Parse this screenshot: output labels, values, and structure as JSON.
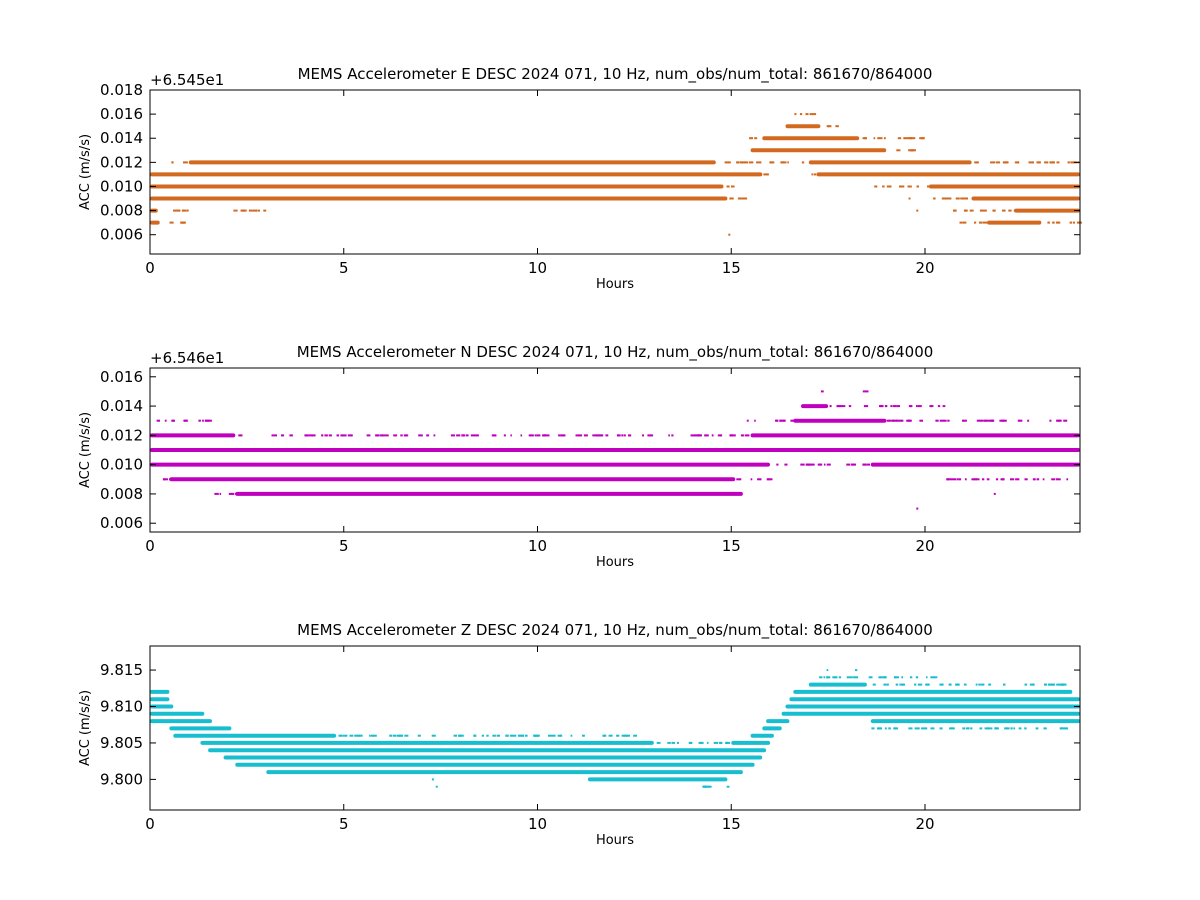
{
  "figure": {
    "background": "#ffffff"
  },
  "chart_data": [
    {
      "type": "scatter",
      "title": "MEMS Accelerometer E DESC 2024 071, 10 Hz, num_obs/num_total: 861670/864000",
      "xlabel": "Hours",
      "ylabel": "ACC (m/s/s)",
      "offset_text": "+6.545e1",
      "xlim": [
        0,
        24
      ],
      "ylim": [
        0.0044,
        0.018
      ],
      "xticks": [
        0,
        5,
        10,
        15,
        20
      ],
      "xtick_labels": [
        "0",
        "5",
        "10",
        "15",
        "20"
      ],
      "yticks": [
        0.006,
        0.008,
        0.01,
        0.012,
        0.014,
        0.016,
        0.018
      ],
      "ytick_labels": [
        "0.006",
        "0.008",
        "0.010",
        "0.012",
        "0.014",
        "0.016",
        "0.018"
      ],
      "grid": false,
      "color": "#d2691e",
      "bands": [
        {
          "y": 0.007,
          "dense": [
            [
              0,
              0.25
            ],
            [
              21.6,
              23.0
            ]
          ],
          "sparse": [
            [
              0.4,
              1.0
            ],
            [
              20.8,
              21.6
            ],
            [
              23.0,
              24
            ]
          ]
        },
        {
          "y": 0.008,
          "dense": [
            [
              0,
              0.2
            ],
            [
              22.3,
              24
            ]
          ],
          "sparse": [
            [
              0.2,
              1.1
            ],
            [
              1.8,
              3.2
            ],
            [
              20.7,
              22.3
            ]
          ]
        },
        {
          "y": 0.009,
          "dense": [
            [
              0,
              14.9
            ],
            [
              21.2,
              24
            ]
          ],
          "sparse": [
            [
              14.9,
              15.5
            ],
            [
              20.2,
              21.2
            ]
          ]
        },
        {
          "y": 0.01,
          "dense": [
            [
              0,
              14.8
            ],
            [
              20.1,
              24
            ]
          ],
          "sparse": [
            [
              14.8,
              15.1
            ],
            [
              18.5,
              20.1
            ]
          ]
        },
        {
          "y": 0.011,
          "dense": [
            [
              0,
              15.8
            ],
            [
              17.2,
              24
            ]
          ],
          "sparse": [
            [
              15.8,
              16.0
            ],
            [
              17.0,
              17.2
            ]
          ]
        },
        {
          "y": 0.012,
          "dense": [
            [
              1.0,
              14.6
            ],
            [
              17.0,
              21.2
            ]
          ],
          "sparse": [
            [
              0.5,
              1.0
            ],
            [
              14.6,
              17.0
            ],
            [
              21.2,
              24
            ]
          ]
        },
        {
          "y": 0.013,
          "dense": [
            [
              15.5,
              19.0
            ]
          ],
          "sparse": [
            [
              19.0,
              19.8
            ]
          ]
        },
        {
          "y": 0.014,
          "dense": [
            [
              15.8,
              18.3
            ]
          ],
          "sparse": [
            [
              15.4,
              15.8
            ],
            [
              18.3,
              20.3
            ]
          ]
        },
        {
          "y": 0.015,
          "dense": [
            [
              16.4,
              17.3
            ]
          ],
          "sparse": [
            [
              17.3,
              17.7
            ]
          ]
        },
        {
          "y": 0.016,
          "dense": [],
          "sparse": [
            [
              16.6,
              17.2
            ]
          ]
        }
      ],
      "isolated_points": [
        {
          "x": 14.95,
          "y": 0.006
        },
        {
          "x": 19.8,
          "y": 0.008
        },
        {
          "x": 19.6,
          "y": 0.009
        }
      ]
    },
    {
      "type": "scatter",
      "title": "MEMS Accelerometer N DESC 2024 071, 10 Hz, num_obs/num_total: 861670/864000",
      "xlabel": "Hours",
      "ylabel": "ACC (m/s/s)",
      "offset_text": "+6.546e1",
      "xlim": [
        0,
        24
      ],
      "ylim": [
        0.0054,
        0.0166
      ],
      "xticks": [
        0,
        5,
        10,
        15,
        20
      ],
      "xtick_labels": [
        "0",
        "5",
        "10",
        "15",
        "20"
      ],
      "yticks": [
        0.006,
        0.008,
        0.01,
        0.012,
        0.014,
        0.016
      ],
      "ytick_labels": [
        "0.006",
        "0.008",
        "0.010",
        "0.012",
        "0.014",
        "0.016"
      ],
      "grid": false,
      "color": "#bf00bf",
      "bands": [
        {
          "y": 0.008,
          "dense": [
            [
              2.2,
              15.3
            ]
          ],
          "sparse": [
            [
              1.6,
              2.2
            ]
          ]
        },
        {
          "y": 0.009,
          "dense": [
            [
              0.5,
              15.1
            ]
          ],
          "sparse": [
            [
              0.0,
              0.5
            ],
            [
              15.1,
              16.0
            ],
            [
              20.5,
              24
            ]
          ]
        },
        {
          "y": 0.01,
          "dense": [
            [
              0,
              16.0
            ],
            [
              18.6,
              24
            ]
          ],
          "sparse": [
            [
              16.0,
              18.6
            ]
          ]
        },
        {
          "y": 0.011,
          "dense": [
            [
              0,
              24
            ]
          ],
          "sparse": []
        },
        {
          "y": 0.012,
          "dense": [
            [
              0,
              2.2
            ],
            [
              15.5,
              24
            ]
          ],
          "sparse": [
            [
              2.2,
              15.5
            ]
          ]
        },
        {
          "y": 0.013,
          "dense": [
            [
              16.6,
              19.0
            ]
          ],
          "sparse": [
            [
              0,
              1.6
            ],
            [
              15.3,
              16.6
            ],
            [
              19.0,
              24
            ]
          ]
        },
        {
          "y": 0.014,
          "dense": [
            [
              16.8,
              17.5
            ]
          ],
          "sparse": [
            [
              17.5,
              20.6
            ]
          ]
        },
        {
          "y": 0.015,
          "dense": [],
          "sparse": [
            [
              17.3,
              17.4
            ],
            [
              18.3,
              18.5
            ]
          ]
        }
      ],
      "isolated_points": [
        {
          "x": 19.8,
          "y": 0.007
        },
        {
          "x": 21.8,
          "y": 0.008
        }
      ]
    },
    {
      "type": "scatter",
      "title": "MEMS Accelerometer Z DESC 2024 071, 10 Hz, num_obs/num_total: 861670/864000",
      "xlabel": "Hours",
      "ylabel": "ACC (m/s/s)",
      "offset_text": "",
      "xlim": [
        0,
        24
      ],
      "ylim": [
        9.7958,
        9.8183
      ],
      "xticks": [
        0,
        5,
        10,
        15,
        20
      ],
      "xtick_labels": [
        "0",
        "5",
        "10",
        "15",
        "20"
      ],
      "yticks": [
        9.8,
        9.805,
        9.81,
        9.815
      ],
      "ytick_labels": [
        "9.800",
        "9.805",
        "9.810",
        "9.815"
      ],
      "grid": false,
      "color": "#17becf",
      "bands": [
        {
          "y": 9.799,
          "dense": [],
          "sparse": [
            [
              14.1,
              14.9
            ]
          ]
        },
        {
          "y": 9.8,
          "dense": [
            [
              11.3,
              14.9
            ]
          ],
          "sparse": []
        },
        {
          "y": 9.801,
          "dense": [
            [
              3.0,
              15.3
            ]
          ],
          "sparse": []
        },
        {
          "y": 9.802,
          "dense": [
            [
              2.2,
              15.6
            ]
          ],
          "sparse": []
        },
        {
          "y": 9.803,
          "dense": [
            [
              1.9,
              15.8
            ]
          ],
          "sparse": []
        },
        {
          "y": 9.804,
          "dense": [
            [
              1.5,
              15.9
            ]
          ],
          "sparse": []
        },
        {
          "y": 9.805,
          "dense": [
            [
              1.3,
              13.0
            ],
            [
              15.0,
              16.0
            ]
          ],
          "sparse": [
            [
              13.0,
              15.0
            ]
          ]
        },
        {
          "y": 9.806,
          "dense": [
            [
              0.6,
              4.8
            ],
            [
              15.5,
              16.1
            ]
          ],
          "sparse": [
            [
              4.8,
              12.5
            ]
          ]
        },
        {
          "y": 9.807,
          "dense": [
            [
              0.5,
              2.1
            ],
            [
              15.8,
              16.3
            ]
          ],
          "sparse": [
            [
              18.6,
              24
            ]
          ]
        },
        {
          "y": 9.808,
          "dense": [
            [
              0.0,
              1.6
            ],
            [
              15.9,
              16.5
            ],
            [
              18.6,
              24
            ]
          ],
          "sparse": []
        },
        {
          "y": 9.809,
          "dense": [
            [
              0,
              1.4
            ],
            [
              16.3,
              24
            ]
          ],
          "sparse": []
        },
        {
          "y": 9.81,
          "dense": [
            [
              0,
              0.6
            ],
            [
              16.4,
              24
            ]
          ],
          "sparse": []
        },
        {
          "y": 9.811,
          "dense": [
            [
              0,
              0.5
            ],
            [
              16.5,
              24
            ]
          ],
          "sparse": []
        },
        {
          "y": 9.812,
          "dense": [
            [
              0,
              0.5
            ],
            [
              16.6,
              23.8
            ]
          ],
          "sparse": []
        },
        {
          "y": 9.813,
          "dense": [
            [
              17.0,
              18.5
            ]
          ],
          "sparse": [
            [
              18.5,
              23.7
            ]
          ]
        },
        {
          "y": 9.814,
          "dense": [],
          "sparse": [
            [
              17.2,
              20.4
            ]
          ]
        },
        {
          "y": 9.815,
          "dense": [],
          "sparse": [
            [
              17.4,
              17.5
            ],
            [
              18.1,
              18.2
            ]
          ]
        }
      ],
      "isolated_points": [
        {
          "x": 7.4,
          "y": 9.799
        },
        {
          "x": 7.3,
          "y": 9.8
        }
      ]
    }
  ]
}
